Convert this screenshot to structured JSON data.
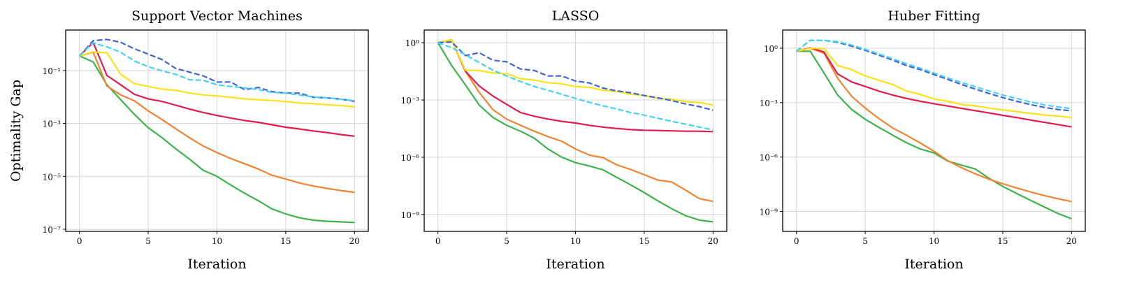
{
  "figure": {
    "ylabel": "Optimality Gap",
    "series_colors": [
      "#3cb44b",
      "#f58231",
      "#e6194b",
      "#ffe119",
      "#4363d8",
      "#42d4f4"
    ],
    "series_styles": [
      "solid",
      "solid",
      "solid",
      "solid",
      "dashed",
      "dashed"
    ]
  },
  "chart_data": [
    {
      "type": "line",
      "title": "Support Vector Machines",
      "xlabel": "Iteration",
      "ylabel": "Optimality Gap",
      "yscale": "log",
      "grid": true,
      "xlim": [
        -1,
        21
      ],
      "ylim": [
        8.3e-08,
        3.4
      ],
      "xticks": [
        0,
        5,
        10,
        15,
        20
      ],
      "xtick_labels": [
        "0",
        "5",
        "10",
        "15",
        "20"
      ],
      "yticks": [
        0.1,
        0.001,
        1e-05,
        1e-07
      ],
      "ytick_labels": [
        "10⁻¹",
        "10⁻³",
        "10⁻⁵",
        "10⁻⁷"
      ],
      "x": [
        0,
        1,
        2,
        3,
        4,
        5,
        6,
        7,
        8,
        9,
        10,
        11,
        12,
        13,
        14,
        15,
        16,
        17,
        18,
        19,
        20
      ],
      "series": [
        {
          "color": "#3cb44b",
          "values": [
            0.36,
            0.21,
            0.029,
            0.0079,
            0.0022,
            0.00069,
            0.00029,
            0.00011,
            4.5e-05,
            1.7e-05,
            1e-05,
            4.7e-06,
            2.3e-06,
            1.2e-06,
            5.9e-07,
            3.8e-07,
            2.7e-07,
            2.2e-07,
            2e-07,
            1.9e-07,
            1.8e-07
          ]
        },
        {
          "color": "#f58231",
          "values": [
            0.36,
            0.49,
            0.026,
            0.012,
            0.0072,
            0.003,
            0.0014,
            0.00063,
            0.00029,
            0.00014,
            7.9e-05,
            4.7e-05,
            3e-05,
            1.9e-05,
            1.1e-05,
            7.9e-06,
            5.6e-06,
            4.3e-06,
            3.5e-06,
            2.9e-06,
            2.5e-06
          ]
        },
        {
          "color": "#e6194b",
          "values": [
            0.36,
            1.15,
            0.065,
            0.029,
            0.0126,
            0.0085,
            0.0068,
            0.0049,
            0.0035,
            0.0026,
            0.002,
            0.0016,
            0.0013,
            0.0011,
            0.00089,
            0.00072,
            0.00062,
            0.00052,
            0.00045,
            0.00038,
            0.00033
          ]
        },
        {
          "color": "#ffe119",
          "values": [
            0.36,
            0.51,
            0.47,
            0.072,
            0.032,
            0.025,
            0.02,
            0.018,
            0.014,
            0.012,
            0.011,
            0.0098,
            0.0085,
            0.0079,
            0.0074,
            0.0068,
            0.0059,
            0.0056,
            0.0051,
            0.0047,
            0.0043
          ]
        },
        {
          "color": "#4363d8",
          "dashed": true,
          "values": [
            0.36,
            1.35,
            1.5,
            1.17,
            0.66,
            0.42,
            0.26,
            0.12,
            0.087,
            0.063,
            0.037,
            0.037,
            0.019,
            0.023,
            0.016,
            0.014,
            0.014,
            0.0098,
            0.0093,
            0.0083,
            0.0069
          ]
        },
        {
          "color": "#42d4f4",
          "dashed": true,
          "values": [
            0.36,
            1.12,
            0.79,
            0.49,
            0.23,
            0.14,
            0.098,
            0.072,
            0.045,
            0.043,
            0.029,
            0.025,
            0.022,
            0.019,
            0.015,
            0.014,
            0.012,
            0.01,
            0.0093,
            0.0083,
            0.0072
          ]
        }
      ]
    },
    {
      "type": "line",
      "title": "LASSO",
      "xlabel": "Iteration",
      "yscale": "log",
      "grid": true,
      "xlim": [
        -1,
        21
      ],
      "ylim": [
        1.3e-10,
        4.6
      ],
      "xticks": [
        0,
        5,
        10,
        15,
        20
      ],
      "xtick_labels": [
        "0",
        "5",
        "10",
        "15",
        "20"
      ],
      "yticks": [
        1,
        0.001,
        1e-06,
        1e-09
      ],
      "ytick_labels": [
        "10⁰",
        "10⁻³",
        "10⁻⁶",
        "10⁻⁹"
      ],
      "x": [
        0,
        1,
        2,
        3,
        4,
        5,
        6,
        7,
        8,
        9,
        10,
        11,
        12,
        13,
        14,
        15,
        16,
        17,
        18,
        19,
        20
      ],
      "series": [
        {
          "color": "#3cb44b",
          "values": [
            1,
            0.063,
            0.0062,
            0.00054,
            0.00012,
            4.7e-05,
            2.3e-05,
            1e-05,
            2.7e-06,
            1e-06,
            5.2e-07,
            3.5e-07,
            2.2e-07,
            8.9e-08,
            3.6e-08,
            1.4e-08,
            5.1e-09,
            2e-09,
            8.7e-10,
            5.1e-10,
            4.1e-10
          ]
        },
        {
          "color": "#f58231",
          "values": [
            1,
            1.41,
            0.032,
            0.0025,
            0.00031,
            9.8e-05,
            4.7e-05,
            2.3e-05,
            1.2e-05,
            6.9e-06,
            2.7e-06,
            1.3e-06,
            9.5e-07,
            4e-07,
            2.3e-07,
            1.2e-07,
            6.3e-08,
            5e-08,
            1.9e-08,
            6.8e-09,
            4.8e-09
          ]
        },
        {
          "color": "#e6194b",
          "values": [
            1,
            1.41,
            0.032,
            0.0054,
            0.0016,
            0.00059,
            0.00022,
            0.00014,
            0.0001,
            7.6e-05,
            6.2e-05,
            4.7e-05,
            3.8e-05,
            3.2e-05,
            2.8e-05,
            2.6e-05,
            2.5e-05,
            2.4e-05,
            2.3e-05,
            2.3e-05,
            2.2e-05
          ]
        },
        {
          "color": "#ffe119",
          "values": [
            1,
            1.41,
            0.036,
            0.035,
            0.026,
            0.024,
            0.013,
            0.011,
            0.0081,
            0.0071,
            0.005,
            0.0046,
            0.0032,
            0.0028,
            0.002,
            0.0017,
            0.0012,
            0.0011,
            0.00081,
            0.00074,
            0.00054
          ]
        },
        {
          "color": "#4363d8",
          "dashed": true,
          "values": [
            1,
            1.1,
            0.21,
            0.3,
            0.12,
            0.1,
            0.042,
            0.035,
            0.018,
            0.018,
            0.0098,
            0.0078,
            0.0042,
            0.003,
            0.0024,
            0.0017,
            0.0013,
            0.00093,
            0.00062,
            0.00045,
            0.00029
          ]
        },
        {
          "color": "#42d4f4",
          "dashed": true,
          "values": [
            1,
            0.55,
            0.23,
            0.093,
            0.036,
            0.018,
            0.0093,
            0.0051,
            0.0032,
            0.002,
            0.0012,
            0.00076,
            0.00049,
            0.00034,
            0.00022,
            0.00016,
            0.00011,
            7.6e-05,
            5.4e-05,
            3.8e-05,
            2.7e-05
          ]
        }
      ]
    },
    {
      "type": "line",
      "title": "Huber Fitting",
      "xlabel": "Iteration",
      "yscale": "log",
      "grid": true,
      "xlim": [
        -1,
        21
      ],
      "ylim": [
        8e-11,
        10
      ],
      "xticks": [
        0,
        5,
        10,
        15,
        20
      ],
      "xtick_labels": [
        "0",
        "5",
        "10",
        "15",
        "20"
      ],
      "yticks": [
        1,
        0.001,
        1e-06,
        1e-09
      ],
      "ytick_labels": [
        "10⁰",
        "10⁻³",
        "10⁻⁶",
        "10⁻⁹"
      ],
      "x": [
        0,
        1,
        2,
        3,
        4,
        5,
        6,
        7,
        8,
        9,
        10,
        11,
        12,
        13,
        14,
        15,
        16,
        17,
        18,
        19,
        20
      ],
      "series": [
        {
          "color": "#3cb44b",
          "values": [
            0.68,
            0.68,
            0.044,
            0.0026,
            0.00043,
            0.00012,
            4.3e-05,
            1.6e-05,
            6.2e-06,
            2.8e-06,
            1.7e-06,
            6e-07,
            3.6e-07,
            2.2e-07,
            6.8e-08,
            2.4e-08,
            1e-08,
            4.2e-09,
            1.8e-09,
            7.9e-10,
            4e-10
          ]
        },
        {
          "color": "#f58231",
          "values": [
            0.68,
            1.0,
            0.54,
            0.022,
            0.0023,
            0.0005,
            0.00013,
            4e-05,
            1.6e-05,
            6e-06,
            2.1e-06,
            6.3e-07,
            2.6e-07,
            1.2e-07,
            6e-08,
            3.4e-08,
            2e-08,
            1.2e-08,
            7.6e-09,
            5.1e-09,
            3.5e-09
          ]
        },
        {
          "color": "#e6194b",
          "values": [
            0.68,
            1.05,
            0.62,
            0.038,
            0.014,
            0.0078,
            0.0043,
            0.0026,
            0.0017,
            0.0012,
            0.00087,
            0.00065,
            0.00048,
            0.00036,
            0.00027,
            0.0002,
            0.00015,
            0.00011,
            8.3e-05,
            6.2e-05,
            4.6e-05
          ]
        },
        {
          "color": "#ffe119",
          "values": [
            0.68,
            1.0,
            0.95,
            0.11,
            0.066,
            0.03,
            0.017,
            0.01,
            0.0044,
            0.0028,
            0.0016,
            0.0012,
            0.00079,
            0.00066,
            0.0005,
            0.0004,
            0.00032,
            0.00026,
            0.00021,
            0.00018,
            0.00015
          ]
        },
        {
          "color": "#4363d8",
          "dashed": true,
          "values": [
            0.68,
            2.75,
            2.75,
            2.1,
            1.3,
            0.76,
            0.41,
            0.22,
            0.11,
            0.066,
            0.035,
            0.019,
            0.01,
            0.0056,
            0.0032,
            0.0019,
            0.0012,
            0.00079,
            0.00055,
            0.00042,
            0.00035
          ]
        },
        {
          "color": "#42d4f4",
          "dashed": true,
          "values": [
            0.68,
            2.75,
            2.75,
            2.3,
            1.5,
            0.87,
            0.48,
            0.26,
            0.14,
            0.079,
            0.043,
            0.023,
            0.013,
            0.0076,
            0.0044,
            0.0026,
            0.0017,
            0.0011,
            0.00076,
            0.00058,
            0.00047
          ]
        }
      ]
    }
  ]
}
